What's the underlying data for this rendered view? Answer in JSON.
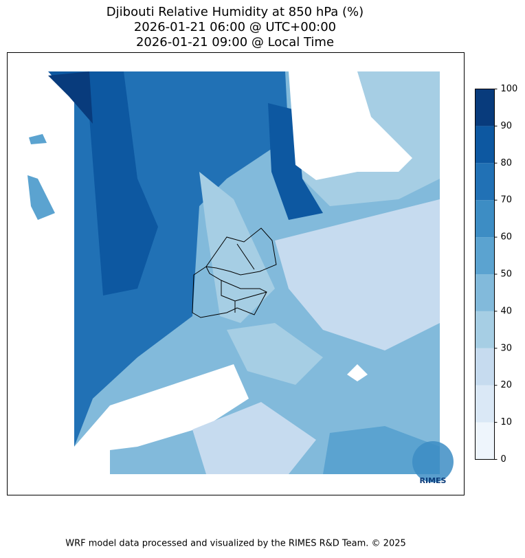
{
  "title_lines": [
    "Djibouti Relative Humidity at 850 hPa (%)",
    "2026-01-21 06:00 @ UTC+00:00",
    "2026-01-21 09:00 @ Local Time"
  ],
  "colorbar": {
    "ticks": [
      0,
      10,
      20,
      30,
      40,
      50,
      60,
      70,
      80,
      90,
      100
    ],
    "colors": [
      "#eef5fc",
      "#dae8f6",
      "#c6dbef",
      "#a6cee4",
      "#82badb",
      "#5ba3d0",
      "#3d8dc4",
      "#2171b5",
      "#0d58a1",
      "#083b7c"
    ]
  },
  "logo_text": "RIMES",
  "footer": "WRF model data processed and visualized by the RIMES R&D Team. © 2025"
}
